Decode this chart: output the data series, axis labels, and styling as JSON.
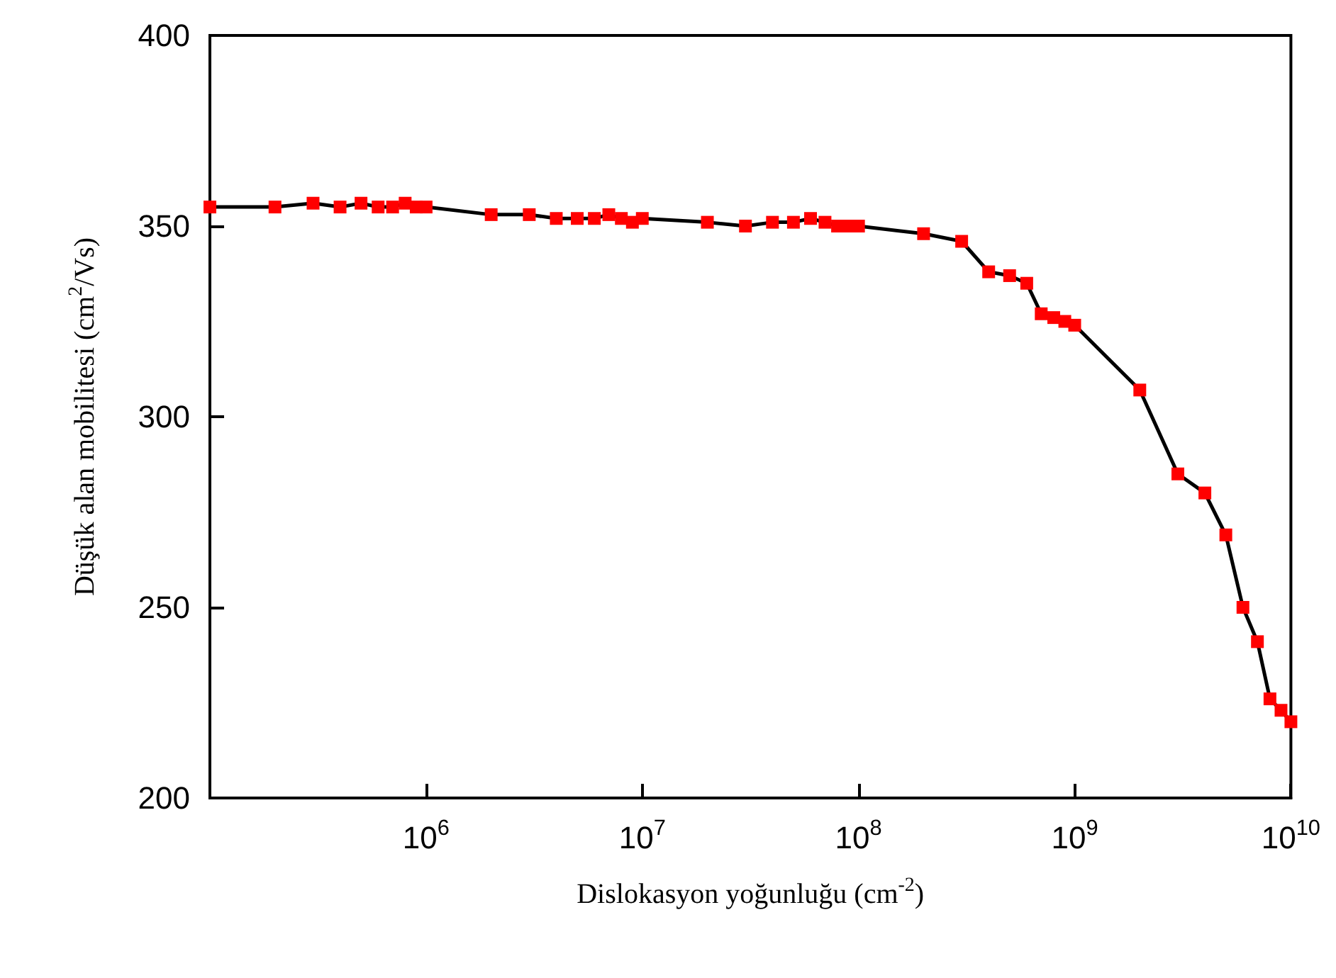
{
  "chart_data": {
    "type": "line",
    "xlabel": "Dislokasyon yoğunluğu (cm$^{-2}$)",
    "ylabel": "Düşük alan mobilitesi (cm$^{2}$/Vs)",
    "log": "x",
    "xlim": [
      100000,
      10000000000
    ],
    "xticks": [
      {
        "value": 1000000,
        "label": "10$^{6}$"
      },
      {
        "value": 10000000,
        "label": "10$^{7}$"
      },
      {
        "value": 100000000,
        "label": "10$^{8}$"
      },
      {
        "value": 1000000000,
        "label": "10$^{9}$"
      },
      {
        "value": 10000000000,
        "label": "10$^{10}$"
      }
    ],
    "ylim": [
      200,
      400
    ],
    "yticks": [
      200,
      250,
      300,
      350,
      400
    ],
    "grid": false,
    "marker": "square",
    "line_style": "solid",
    "x": [
      100000,
      200000,
      300000,
      400000,
      500000,
      600000,
      700000,
      800000,
      900000,
      1000000,
      2000000,
      3000000,
      4000000,
      5000000,
      6000000,
      7000000,
      8000000,
      9000000,
      10000000,
      20000000,
      30000000,
      40000000,
      50000000,
      60000000,
      70000000,
      80000000,
      90000000,
      100000000,
      200000000,
      300000000,
      400000000,
      500000000,
      600000000,
      700000000,
      800000000,
      900000000,
      1000000000,
      2000000000,
      3000000000,
      4000000000,
      5000000000,
      6000000000,
      7000000000,
      8000000000,
      9000000000,
      10000000000
    ],
    "series": [
      {
        "color": "#ff0000",
        "values": [
          355,
          355,
          356,
          355,
          356,
          355,
          355,
          356,
          355,
          355,
          353,
          353,
          352,
          352,
          352,
          353,
          352,
          351,
          352,
          351,
          350,
          351,
          351,
          352,
          351,
          350,
          350,
          350,
          348,
          346,
          338,
          337,
          335,
          327,
          326,
          325,
          324,
          307,
          285,
          280,
          269,
          250,
          241,
          226,
          223,
          220
        ]
      }
    ]
  }
}
